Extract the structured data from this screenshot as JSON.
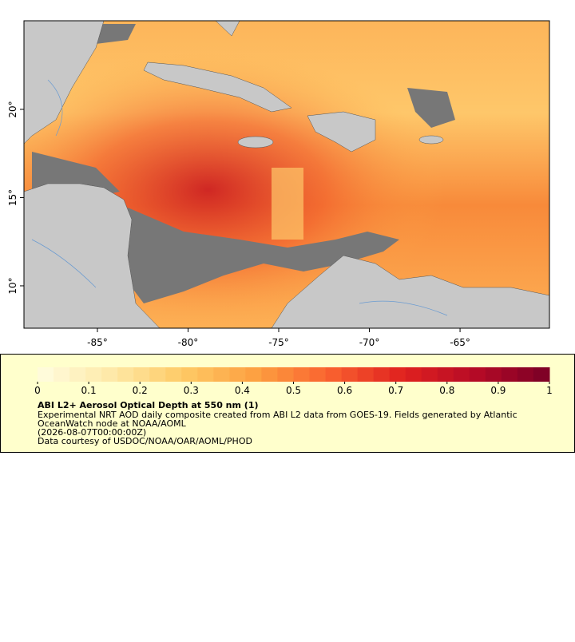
{
  "map": {
    "xlim": [
      -89.05,
      -60.07
    ],
    "ylim": [
      7.6,
      25.02
    ],
    "xticks": [
      {
        "value": -85,
        "label": "-85°"
      },
      {
        "value": -80,
        "label": "-80°"
      },
      {
        "value": -75,
        "label": "-75°"
      },
      {
        "value": -70,
        "label": "-70°"
      },
      {
        "value": -65,
        "label": "-65°"
      }
    ],
    "yticks": [
      {
        "value": 10,
        "label": "10°"
      },
      {
        "value": 15,
        "label": "15°"
      },
      {
        "value": 20,
        "label": "20°"
      }
    ]
  },
  "colorbar": {
    "range": [
      0,
      1
    ],
    "ticks": [
      0,
      0.1,
      0.2,
      0.3,
      0.4,
      0.5,
      0.6,
      0.7,
      0.8,
      0.9,
      1
    ],
    "colors": [
      "#fffde0",
      "#fee9a8",
      "#fec965",
      "#fd9f40",
      "#f9612f",
      "#e0211f",
      "#b50a26",
      "#7a0026"
    ]
  },
  "legend": {
    "title": "ABI L2+ Aerosol Optical Depth at 550 nm (1)",
    "lines": [
      "Experimental NRT AOD daily composite created from ABI L2 data from GOES-19. Fields generated by Atlantic",
      "OceanWatch node at NOAA/AOML",
      "(2026-08-07T00:00:00Z)",
      "Data courtesy of USDOC/NOAA/OAR/AOML/PHOD"
    ]
  }
}
